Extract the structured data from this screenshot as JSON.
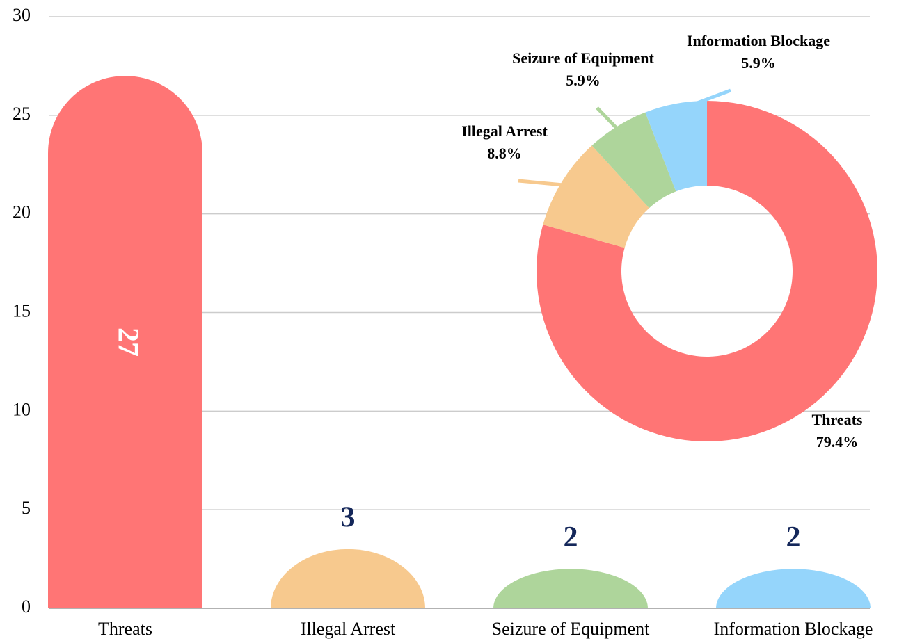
{
  "chart_data": [
    {
      "type": "bar",
      "categories": [
        "Threats",
        "Illegal Arrest",
        "Seizure of Equipment",
        "Information Blockage"
      ],
      "values": [
        27,
        3,
        2,
        2
      ],
      "colors": [
        "#ff7575",
        "#f7c98e",
        "#aed59b",
        "#95d5fb"
      ],
      "ylim": [
        0,
        30
      ],
      "yticks": [
        0,
        5,
        10,
        15,
        20,
        25,
        30
      ],
      "grid": true
    },
    {
      "type": "pie",
      "categories": [
        "Threats",
        "Illegal Arrest",
        "Seizure of Equipment",
        "Information Blockage"
      ],
      "values": [
        79.4,
        8.8,
        5.9,
        5.9
      ],
      "value_labels": [
        "79.4%",
        "8.8%",
        "5.9%",
        "5.9%"
      ],
      "colors": [
        "#ff7575",
        "#f7c98e",
        "#aed59b",
        "#95d5fb"
      ],
      "donut": true
    }
  ]
}
